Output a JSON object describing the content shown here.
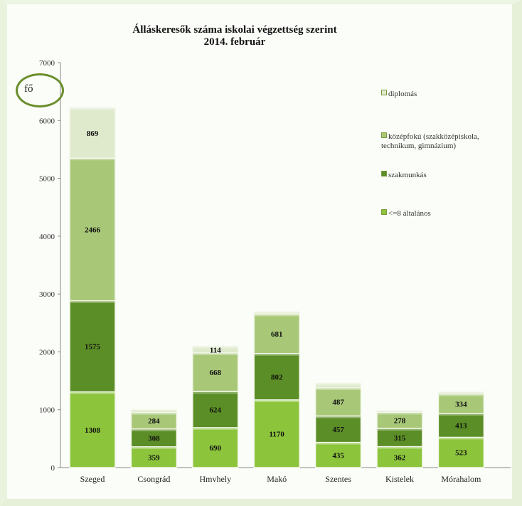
{
  "title": {
    "line1": "Álláskeresők száma iskolai végzettség szerint",
    "line2": "2014. február"
  },
  "unit_label": "fő",
  "colors": {
    "ltel8": "#8cc43c",
    "szakmunkas": "#5b8e26",
    "kozepfoku": "#a8c878",
    "diplomas": "#dfe9cc"
  },
  "chart_data": {
    "type": "bar",
    "stacked": true,
    "categories": [
      "Szeged",
      "Csongrád",
      "Hmvhely",
      "Makó",
      "Szentes",
      "Kistelek",
      "Mórahalom"
    ],
    "series": [
      {
        "name": "<=8 általános",
        "key": "ltel8",
        "values": [
          1308,
          359,
          690,
          1170,
          435,
          362,
          523
        ]
      },
      {
        "name": "szakmunkás",
        "key": "szakmunkas",
        "values": [
          1575,
          308,
          624,
          802,
          457,
          315,
          413
        ]
      },
      {
        "name": "középfokú (szakközépiskola, technikum, gimnázium)",
        "key": "kozepfoku",
        "values": [
          2466,
          284,
          668,
          681,
          487,
          278,
          334
        ]
      },
      {
        "name": "diplomás",
        "key": "diplomas",
        "values": [
          869,
          55,
          114,
          40,
          80,
          30,
          40
        ]
      }
    ],
    "value_labels_shown": [
      [
        true,
        true,
        true,
        true,
        true,
        true,
        true
      ],
      [
        true,
        true,
        true,
        true,
        true,
        true,
        true
      ],
      [
        true,
        true,
        true,
        true,
        true,
        true,
        true
      ],
      [
        true,
        false,
        true,
        false,
        false,
        false,
        false
      ]
    ],
    "yticks": [
      0,
      1000,
      2000,
      3000,
      4000,
      5000,
      6000,
      7000
    ],
    "ylim": [
      0,
      7000
    ],
    "legend": [
      {
        "label": "diplomás",
        "key": "diplomas"
      },
      {
        "label": "középfokú (szakközépiskola, technikum, gimnázium)",
        "key": "kozepfoku"
      },
      {
        "label": "szakmunkás",
        "key": "szakmunkas"
      },
      {
        "label": "<=8 általános",
        "key": "ltel8"
      }
    ],
    "legend_position": "right",
    "grid": false
  }
}
